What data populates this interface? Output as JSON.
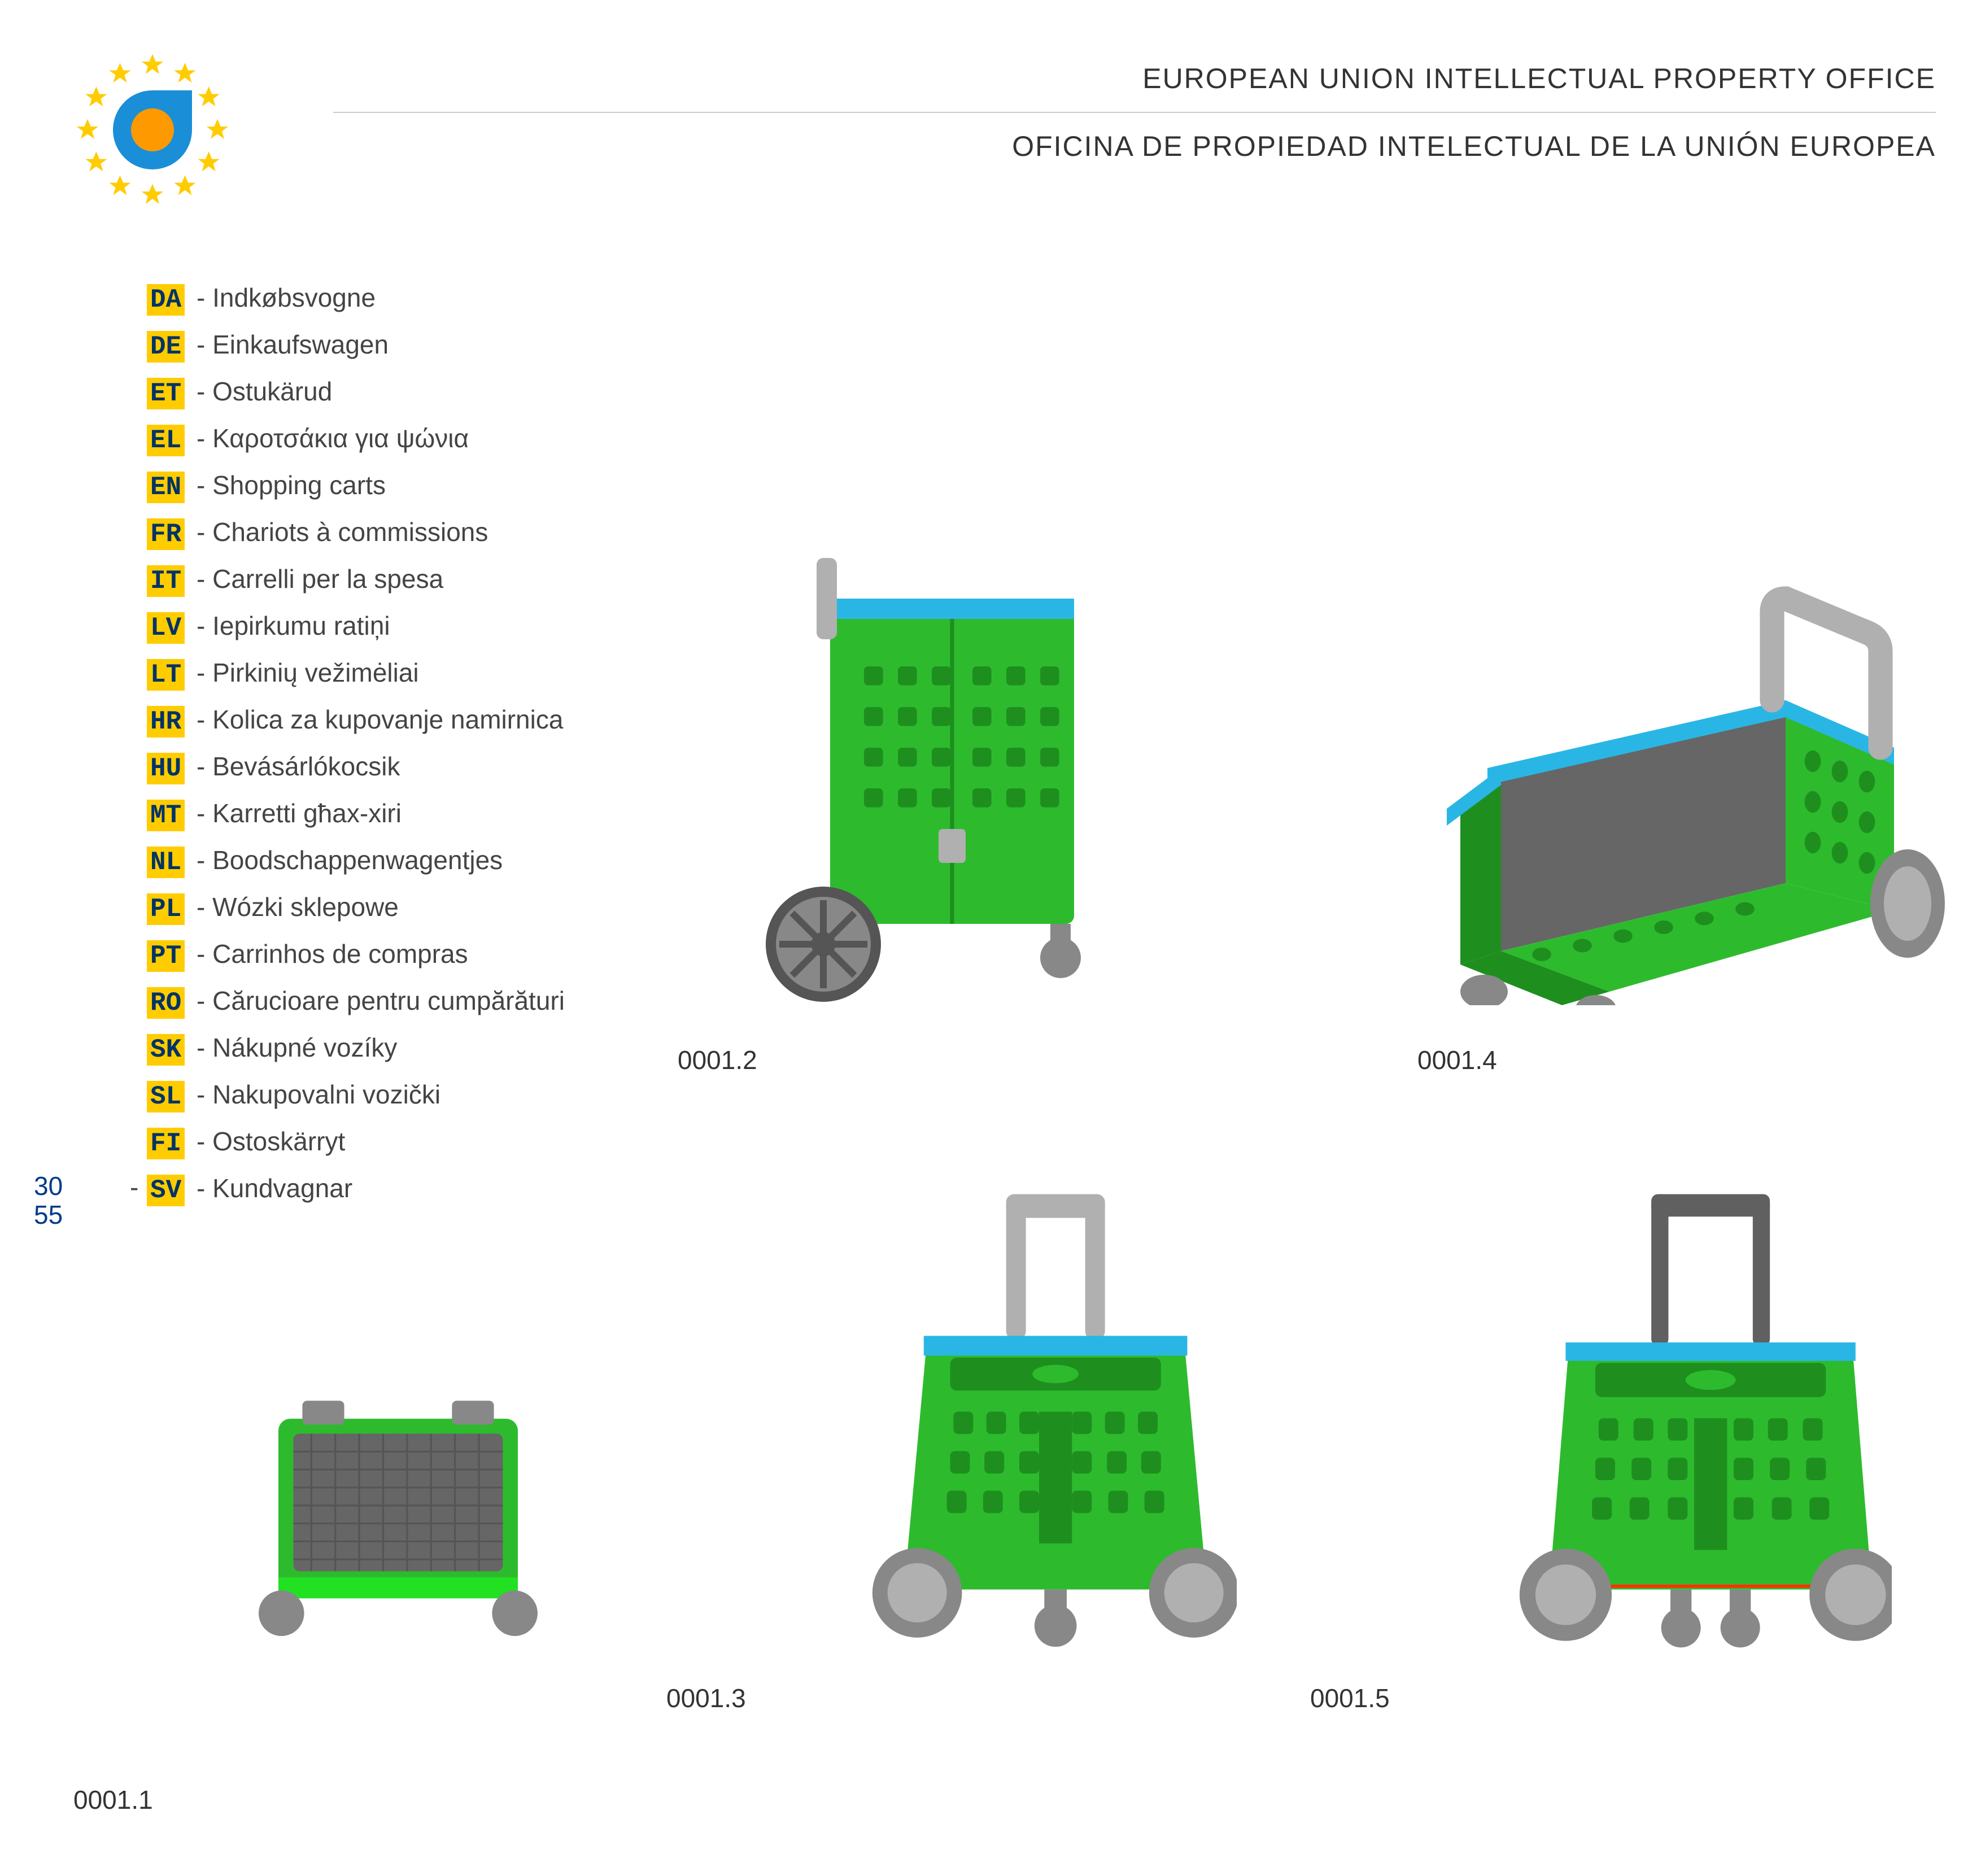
{
  "header": {
    "title_en": "EUROPEAN UNION INTELLECTUAL PROPERTY OFFICE",
    "title_es": "OFICINA DE PROPIEDAD INTELECTUAL DE LA UNIÓN EUROPEA"
  },
  "logo": {
    "star_color": "#ffcc00",
    "ring_color": "#1a8fd8",
    "center_color": "#ff9900"
  },
  "languages": [
    {
      "code": "DA",
      "label": "Indkøbsvogne"
    },
    {
      "code": "DE",
      "label": "Einkaufswagen"
    },
    {
      "code": "ET",
      "label": "Ostukärud"
    },
    {
      "code": "EL",
      "label": "Καροτσάκια για ψώνια"
    },
    {
      "code": "EN",
      "label": "Shopping carts"
    },
    {
      "code": "FR",
      "label": "Chariots à commissions"
    },
    {
      "code": "IT",
      "label": "Carrelli per la spesa"
    },
    {
      "code": "LV",
      "label": "Iepirkumu ratiņi"
    },
    {
      "code": "LT",
      "label": "Pirkinių vežimėliai"
    },
    {
      "code": "HR",
      "label": "Kolica za kupovanje namirnica"
    },
    {
      "code": "HU",
      "label": "Bevásárlókocsik"
    },
    {
      "code": "MT",
      "label": "Karretti għax-xiri"
    },
    {
      "code": "NL",
      "label": "Boodschappenwagentjes"
    },
    {
      "code": "PL",
      "label": "Wózki sklepowe"
    },
    {
      "code": "PT",
      "label": "Carrinhos de compras"
    },
    {
      "code": "RO",
      "label": "Cărucioare pentru cumpărături"
    },
    {
      "code": "SK",
      "label": "Nákupné vozíky"
    },
    {
      "code": "SL",
      "label": "Nakupovalni vozički"
    },
    {
      "code": "FI",
      "label": "Ostoskärryt"
    },
    {
      "code": "SV",
      "label": "Kundvagnar"
    }
  ],
  "extra": {
    "code1": "30",
    "code2": "55",
    "dash": "-"
  },
  "figures": {
    "f1": {
      "caption": "0001.1"
    },
    "f2": {
      "caption": "0001.2"
    },
    "f3": {
      "caption": "0001.3"
    },
    "f4": {
      "caption": "0001.4"
    },
    "f5": {
      "caption": "0001.5"
    }
  },
  "cart": {
    "body_color": "#2dbb2d",
    "body_dark": "#1e8f1e",
    "trim_color": "#29b6e5",
    "handle_color": "#b0b0b0",
    "handle_dark": "#606060",
    "wheel_color": "#888888",
    "wheel_dark": "#555555",
    "floor_color": "#666666"
  }
}
